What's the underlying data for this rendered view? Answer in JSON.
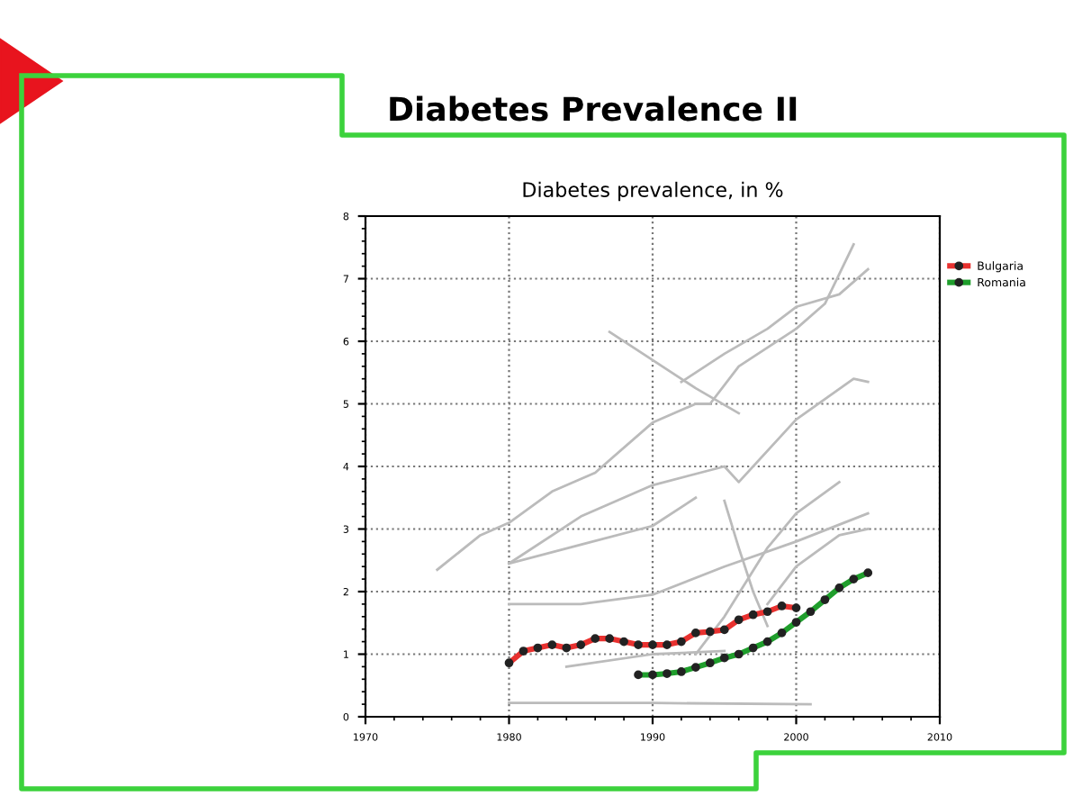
{
  "chart_data": {
    "type": "line",
    "title": "Diabetes Prevalence II",
    "subtitle": "Diabetes prevalence, in %",
    "xlim": [
      1970,
      2010
    ],
    "xticks": [
      1970,
      1980,
      1990,
      2000,
      2010
    ],
    "ylim": [
      0,
      8
    ],
    "yticks": [
      0,
      1,
      2,
      3,
      4,
      5,
      6,
      7,
      8
    ],
    "grid": true,
    "legend": "top right",
    "line_style": "solid",
    "series": [
      {
        "color": "#bbbbbb",
        "marker": "none",
        "x": [
          1975,
          1978,
          1980,
          1983,
          1986,
          1990,
          1993,
          1994,
          1996,
          2000,
          2002,
          2004
        ],
        "values": [
          2.35,
          2.9,
          3.1,
          3.6,
          3.9,
          4.7,
          5.0,
          5.0,
          5.6,
          6.2,
          6.6,
          7.55
        ]
      },
      {
        "color": "#bbbbbb",
        "marker": "none",
        "x": [
          1987,
          1990,
          1993,
          1996
        ],
        "values": [
          6.15,
          5.7,
          5.25,
          4.85
        ]
      },
      {
        "color": "#bbbbbb",
        "marker": "none",
        "x": [
          1992,
          1995,
          1998,
          2000,
          2003,
          2005
        ],
        "values": [
          5.35,
          5.8,
          6.2,
          6.55,
          6.75,
          7.15
        ]
      },
      {
        "color": "#bbbbbb",
        "marker": "none",
        "x": [
          1980,
          1985,
          1990,
          1995,
          1996,
          2000,
          2004,
          2005
        ],
        "values": [
          2.45,
          3.2,
          3.7,
          4.0,
          3.75,
          4.75,
          5.4,
          5.35
        ]
      },
      {
        "color": "#bbbbbb",
        "marker": "none",
        "x": [
          1980,
          1985,
          1990,
          1993
        ],
        "values": [
          2.45,
          2.75,
          3.05,
          3.5
        ]
      },
      {
        "color": "#bbbbbb",
        "marker": "none",
        "x": [
          1980,
          1985,
          1990,
          1995,
          2000,
          2005
        ],
        "values": [
          1.8,
          1.8,
          1.95,
          2.4,
          2.8,
          3.25
        ]
      },
      {
        "color": "#bbbbbb",
        "marker": "none",
        "x": [
          1995,
          1996,
          1997,
          1998
        ],
        "values": [
          3.45,
          2.7,
          2.0,
          1.45
        ]
      },
      {
        "color": "#bbbbbb",
        "marker": "none",
        "x": [
          1993,
          1995,
          1998,
          2000,
          2003
        ],
        "values": [
          1.0,
          1.6,
          2.7,
          3.25,
          3.75
        ]
      },
      {
        "color": "#bbbbbb",
        "marker": "none",
        "x": [
          1980,
          1990,
          2001
        ],
        "values": [
          0.22,
          0.22,
          0.2
        ]
      },
      {
        "color": "#bbbbbb",
        "marker": "none",
        "x": [
          1984,
          1990,
          1995
        ],
        "values": [
          0.8,
          1.0,
          1.05
        ]
      },
      {
        "color": "#bbbbbb",
        "marker": "none",
        "x": [
          1998,
          2000,
          2003,
          2005
        ],
        "values": [
          1.8,
          2.4,
          2.9,
          3.0
        ]
      },
      {
        "name": "Bulgaria",
        "color": "#e8312f",
        "marker": "circle",
        "x": [
          1980,
          1981,
          1982,
          1983,
          1984,
          1985,
          1986,
          1987,
          1988,
          1989,
          1990,
          1991,
          1992,
          1993,
          1994,
          1995,
          1996,
          1997,
          1998,
          1999,
          2000
        ],
        "values": [
          0.86,
          1.05,
          1.1,
          1.15,
          1.1,
          1.15,
          1.25,
          1.25,
          1.2,
          1.15,
          1.15,
          1.15,
          1.2,
          1.34,
          1.36,
          1.39,
          1.55,
          1.63,
          1.68,
          1.77,
          1.74
        ]
      },
      {
        "name": "Romania",
        "color": "#1f9e2c",
        "marker": "circle",
        "x": [
          1989,
          1990,
          1991,
          1992,
          1993,
          1994,
          1995,
          1996,
          1997,
          1998,
          1999,
          2000,
          2001,
          2002,
          2003,
          2004,
          2005
        ],
        "values": [
          0.67,
          0.67,
          0.69,
          0.72,
          0.79,
          0.86,
          0.94,
          1.0,
          1.1,
          1.2,
          1.34,
          1.51,
          1.68,
          1.87,
          2.06,
          2.2,
          2.3
        ]
      }
    ]
  }
}
